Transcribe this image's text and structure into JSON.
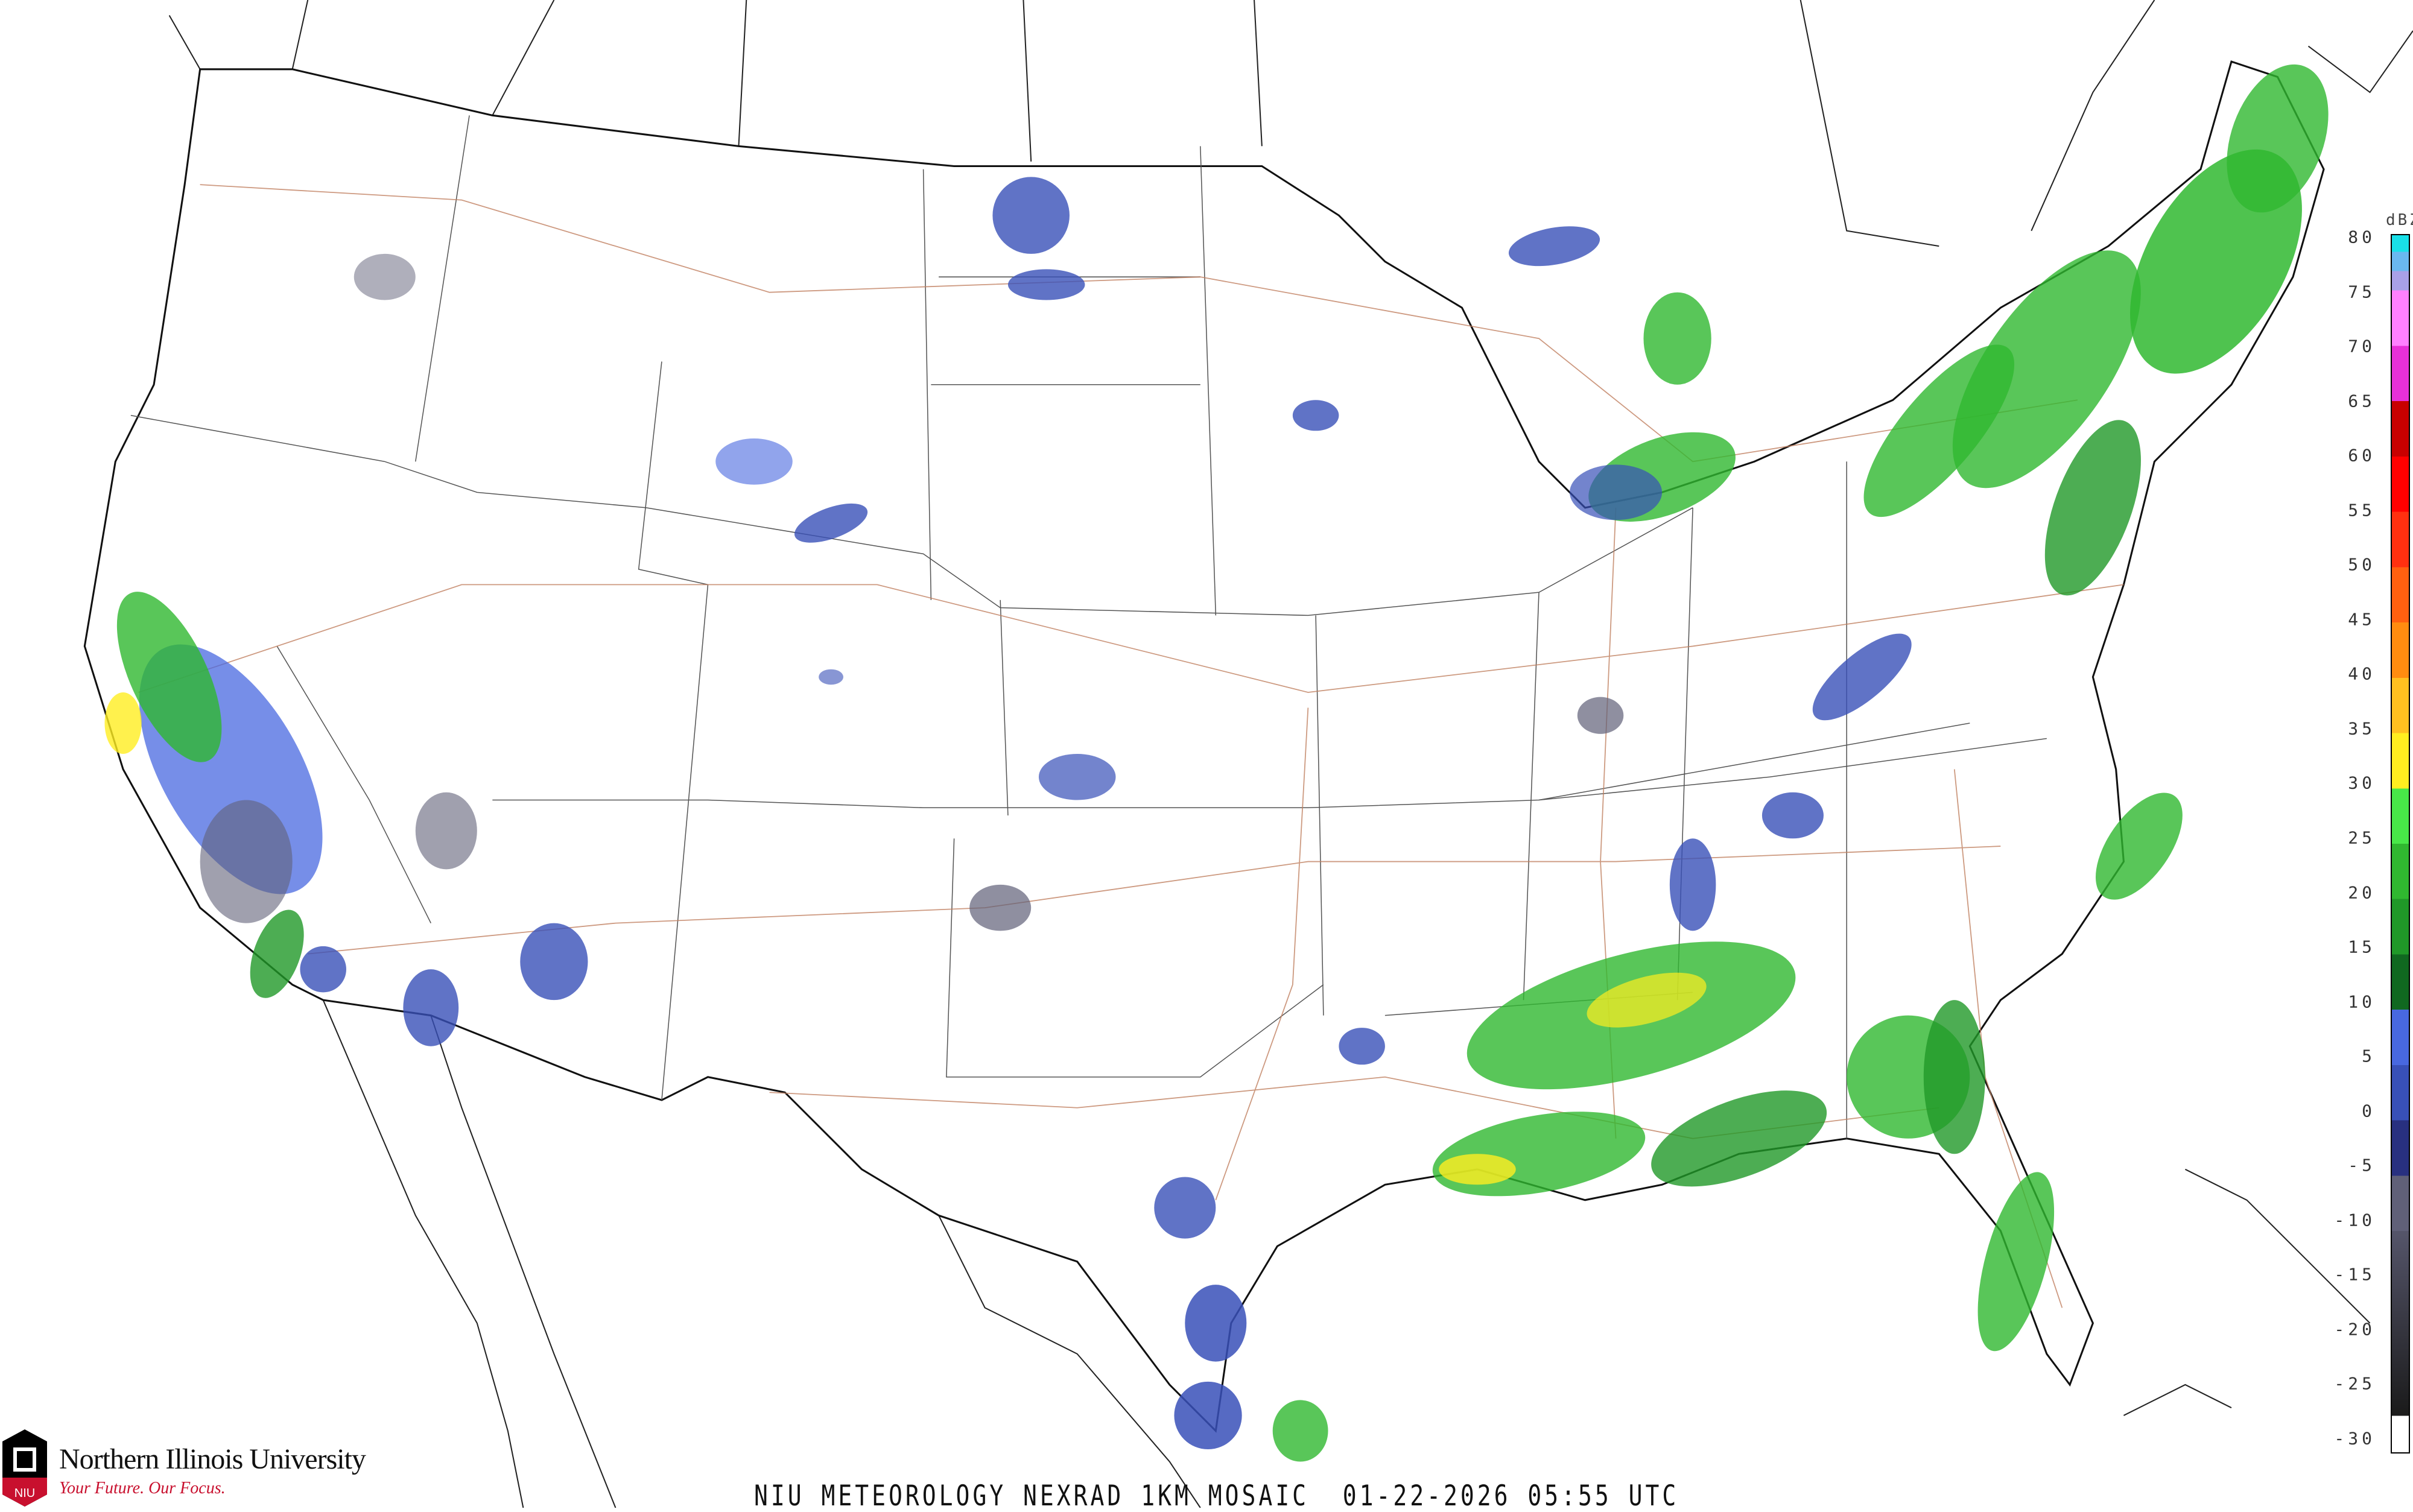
{
  "title": "NIU METEOROLOGY NEXRAD 1KM MOSAIC  01-22-2026 05:55 UTC",
  "logo": {
    "name": "Northern Illinois University",
    "tagline": "Your Future. Our Focus.",
    "mark": "NIU"
  },
  "legend": {
    "unit": "dBZ",
    "labels": [
      "80",
      "75",
      "70",
      "65",
      "60",
      "55",
      "50",
      "45",
      "40",
      "35",
      "30",
      "25",
      "20",
      "15",
      "10",
      "5",
      "0",
      "-5",
      "-10",
      "-15",
      "-20",
      "-25",
      "-30"
    ],
    "colors": {
      "75-80": [
        "#19e0e8",
        "#6ab8f0",
        "#a8a0e8"
      ],
      "70-75": "#ff80ff",
      "65-70": "#e830d8",
      "60-65": "#c80000",
      "55-60": "#ff0000",
      "50-55": "#ff3010",
      "45-50": "#ff6010",
      "40-45": "#ff8c10",
      "35-40": "#ffc020",
      "30-35": "#ffee20",
      "25-30": "#48e848",
      "20-25": "#30b830",
      "15-20": "#209828",
      "10-15": "#106820",
      "5-10": "#4868e0",
      "0-5": "#3850b8",
      "-5-0": "#283080",
      "-10--5": "#606078",
      "-30--10": "#1a1a1a"
    }
  }
}
